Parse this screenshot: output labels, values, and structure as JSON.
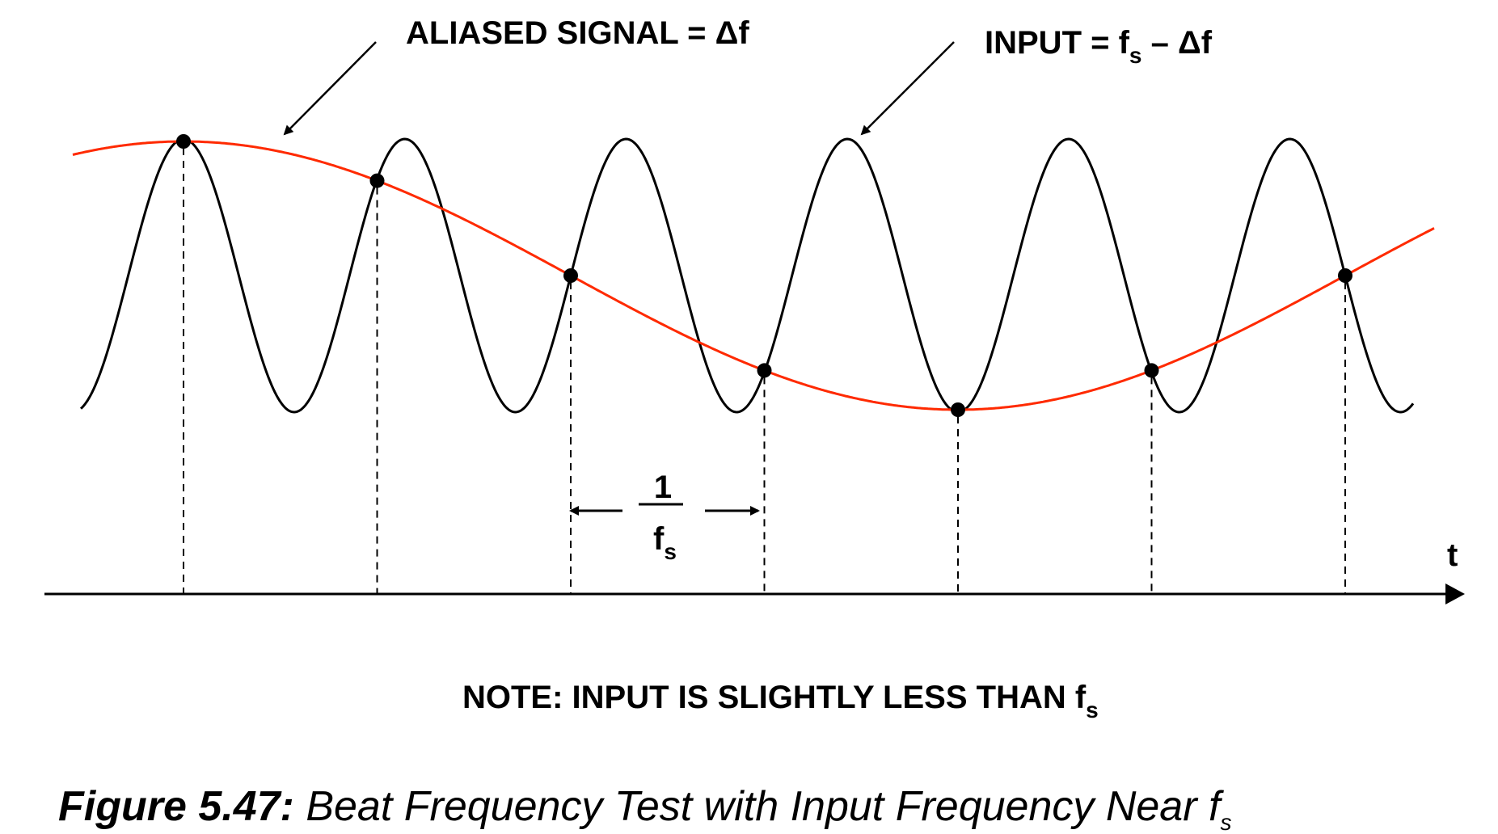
{
  "labels": {
    "aliased_signal": "ALIASED SIGNAL = Δf",
    "input_main": "INPUT = f",
    "input_sub": "s",
    "input_tail": " – Δf",
    "period_numerator": "1",
    "period_denominator": "f",
    "period_denominator_sub": "s",
    "time_axis": "t",
    "note_main": "NOTE: INPUT IS SLIGHTLY LESS THAN f",
    "note_sub": "s"
  },
  "caption": {
    "number": "Figure 5.47:",
    "text": " Beat Frequency Test with Input Frequency Near f",
    "sub": "s"
  },
  "colors": {
    "input_wave": "#000000",
    "aliased_wave": "#ff2a00",
    "sample_dot": "#000000",
    "axis": "#000000"
  },
  "signals": {
    "input_cycles_per_sample": 0.875,
    "aliased_cycles_per_sample": 0.125,
    "sample_count": 7
  }
}
